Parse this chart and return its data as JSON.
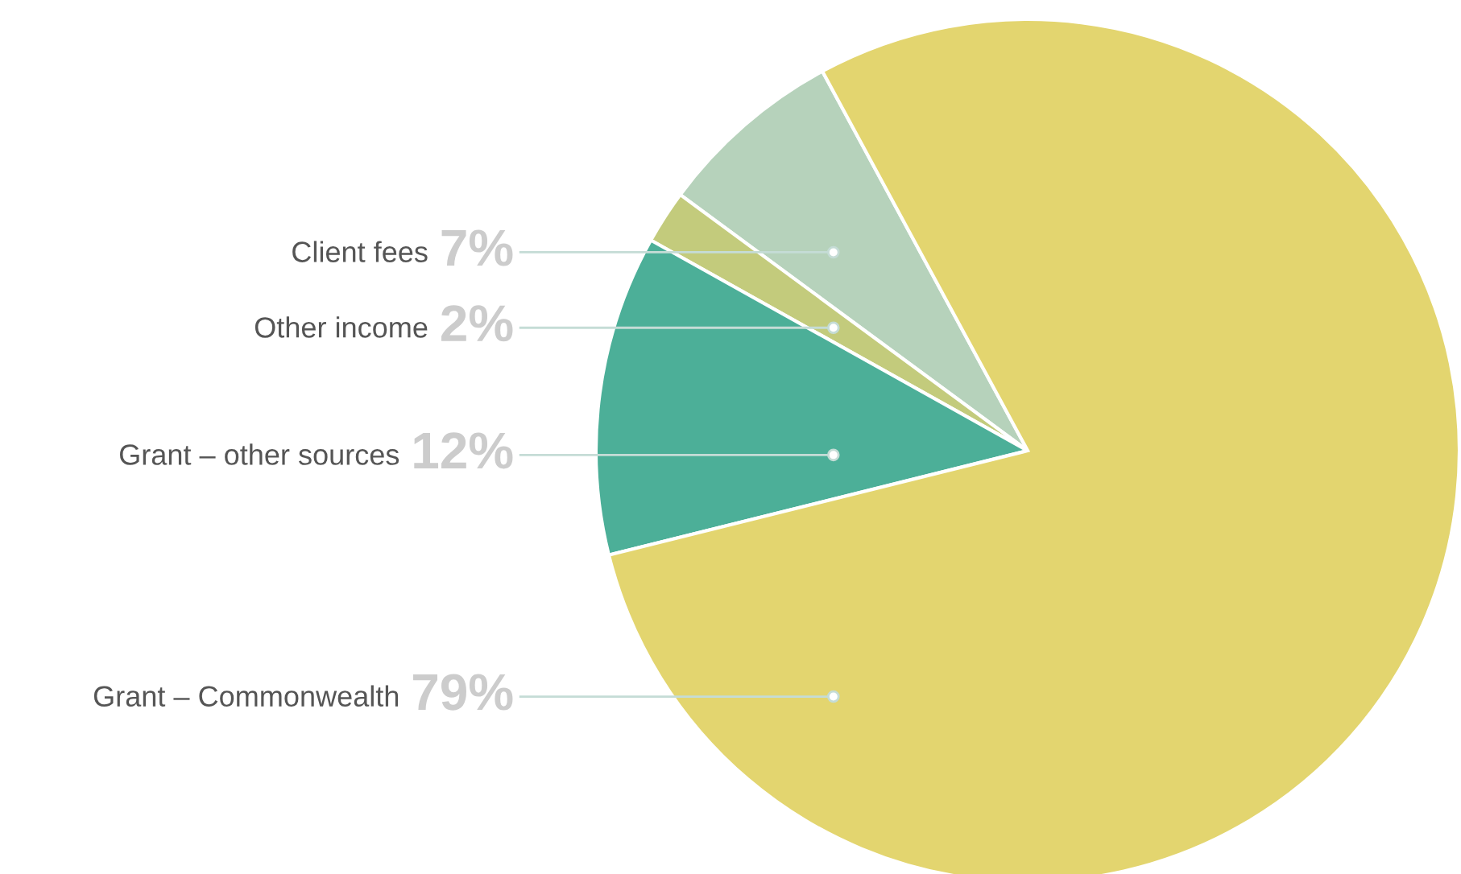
{
  "chart_data": {
    "type": "pie",
    "categories": [
      "Client fees",
      "Other income",
      "Grant – other sources",
      "Grant – Commonwealth"
    ],
    "values": [
      7,
      2,
      12,
      79
    ],
    "value_labels": [
      "7%",
      "2%",
      "12%",
      "79%"
    ],
    "colors": [
      "#b6d2bb",
      "#c3cb7c",
      "#4caf98",
      "#e3d56f"
    ],
    "legend": false
  }
}
